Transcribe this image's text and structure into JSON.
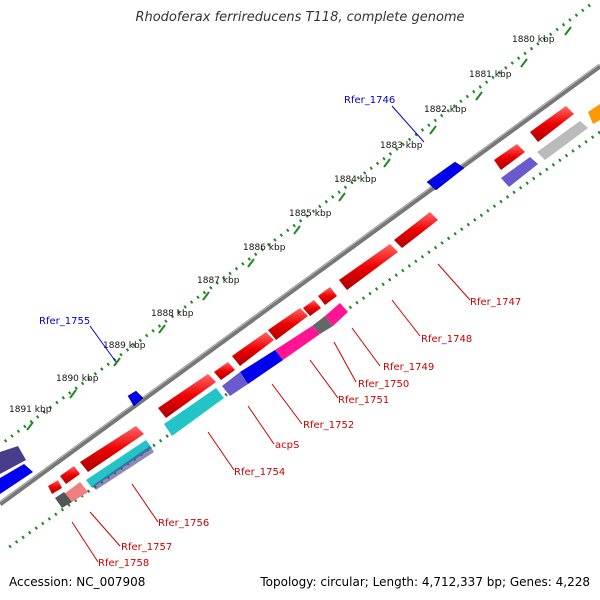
{
  "title": "Rhodoferax ferrireducens T118, complete genome",
  "footer": {
    "accession": "Accession: NC_007908",
    "summary": "Topology: circular; Length: 4,712,337 bp; Genes: 4,228"
  },
  "kbp_labels": [
    "1880 kbp",
    "1881 kbp",
    "1882 kbp",
    "1883 kbp",
    "1884 kbp",
    "1885 kbp",
    "1886 kbp",
    "1887 kbp",
    "1888 kbp",
    "1889 kbp",
    "1890 kbp",
    "1891 kbp"
  ],
  "gene_labels": {
    "Rfer_1746": "Rfer_1746",
    "Rfer_1755": "Rfer_1755",
    "Rfer_1747": "Rfer_1747",
    "Rfer_1748": "Rfer_1748",
    "Rfer_1749": "Rfer_1749",
    "Rfer_1750": "Rfer_1750",
    "Rfer_1751": "Rfer_1751",
    "Rfer_1752": "Rfer_1752",
    "acpS": "acpS",
    "Rfer_1754": "Rfer_1754",
    "Rfer_1756": "Rfer_1756",
    "Rfer_1757": "Rfer_1757",
    "Rfer_1758": "Rfer_1758"
  },
  "colors": {
    "red": "#ee0000",
    "blue": "#0000ee",
    "slate": "#6a5acd",
    "cyan": "#22c4c8",
    "magenta": "#ff1493",
    "pink": "#f08080",
    "grey": "#bbbbbb",
    "dark": "#555555",
    "orange": "#ff9900",
    "backbone": "#777777",
    "tick": "#228822",
    "label_red": "#cc0000",
    "label_blue": "#0000cc"
  }
}
